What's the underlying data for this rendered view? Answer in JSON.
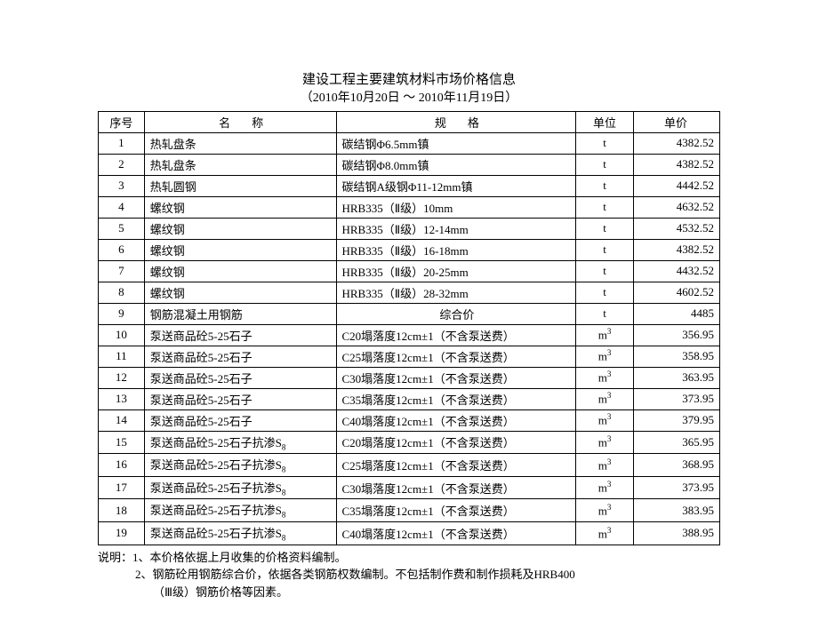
{
  "title": "建设工程主要建筑材料市场价格信息",
  "subtitle": "（2010年10月20日 ～ 2010年11月19日）",
  "headers": {
    "seq": "序号",
    "name": "名称",
    "spec": "规格",
    "unit": "单位",
    "price": "单价"
  },
  "rows": [
    {
      "seq": "1",
      "name": "热轧盘条",
      "spec": "碳结钢Φ6.5mm镇",
      "unit": "t",
      "price": "4382.52"
    },
    {
      "seq": "2",
      "name": "热轧盘条",
      "spec": "碳结钢Φ8.0mm镇",
      "unit": "t",
      "price": "4382.52"
    },
    {
      "seq": "3",
      "name": "热轧圆钢",
      "spec": "碳结钢A级钢Φ11-12mm镇",
      "unit": "t",
      "price": "4442.52"
    },
    {
      "seq": "4",
      "name": "螺纹钢",
      "spec": "HRB335（Ⅱ级）10mm",
      "unit": "t",
      "price": "4632.52"
    },
    {
      "seq": "5",
      "name": "螺纹钢",
      "spec": "HRB335（Ⅱ级）12-14mm",
      "unit": "t",
      "price": "4532.52"
    },
    {
      "seq": "6",
      "name": "螺纹钢",
      "spec": "HRB335（Ⅱ级）16-18mm",
      "unit": "t",
      "price": "4382.52"
    },
    {
      "seq": "7",
      "name": "螺纹钢",
      "spec": "HRB335（Ⅱ级）20-25mm",
      "unit": "t",
      "price": "4432.52"
    },
    {
      "seq": "8",
      "name": "螺纹钢",
      "spec": "HRB335（Ⅱ级）28-32mm",
      "unit": "t",
      "price": "4602.52"
    },
    {
      "seq": "9",
      "name": "钢筋混凝土用钢筋",
      "spec": "综合价",
      "spec_center": true,
      "unit": "t",
      "price": "4485"
    },
    {
      "seq": "10",
      "name": "泵送商品砼5-25石子",
      "spec": "C20塌落度12cm±1（不含泵送费）",
      "unit": "m³",
      "price": "356.95"
    },
    {
      "seq": "11",
      "name": "泵送商品砼5-25石子",
      "spec": "C25塌落度12cm±1（不含泵送费）",
      "unit": "m³",
      "price": "358.95"
    },
    {
      "seq": "12",
      "name": "泵送商品砼5-25石子",
      "spec": "C30塌落度12cm±1（不含泵送费）",
      "unit": "m³",
      "price": "363.95"
    },
    {
      "seq": "13",
      "name": "泵送商品砼5-25石子",
      "spec": "C35塌落度12cm±1（不含泵送费）",
      "unit": "m³",
      "price": "373.95"
    },
    {
      "seq": "14",
      "name": "泵送商品砼5-25石子",
      "spec": "C40塌落度12cm±1（不含泵送费）",
      "unit": "m³",
      "price": "379.95"
    },
    {
      "seq": "15",
      "name": "泵送商品砼5-25石子抗渗S₈",
      "spec": "C20塌落度12cm±1（不含泵送费）",
      "unit": "m³",
      "price": "365.95"
    },
    {
      "seq": "16",
      "name": "泵送商品砼5-25石子抗渗S₈",
      "spec": "C25塌落度12cm±1（不含泵送费）",
      "unit": "m³",
      "price": "368.95"
    },
    {
      "seq": "17",
      "name": "泵送商品砼5-25石子抗渗S₈",
      "spec": "C30塌落度12cm±1（不含泵送费）",
      "unit": "m³",
      "price": "373.95"
    },
    {
      "seq": "18",
      "name": "泵送商品砼5-25石子抗渗S₈",
      "spec": "C35塌落度12cm±1（不含泵送费）",
      "unit": "m³",
      "price": "383.95"
    },
    {
      "seq": "19",
      "name": "泵送商品砼5-25石子抗渗S₈",
      "spec": "C40塌落度12cm±1（不含泵送费）",
      "unit": "m³",
      "price": "388.95"
    }
  ],
  "notes": {
    "line1": "说明：1、本价格依据上月收集的价格资料编制。",
    "line2": "2、钢筋砼用钢筋综合价，依据各类钢筋权数编制。不包括制作费和制作损耗及HRB400",
    "line3": "（Ⅲ级）钢筋价格等因素。"
  }
}
